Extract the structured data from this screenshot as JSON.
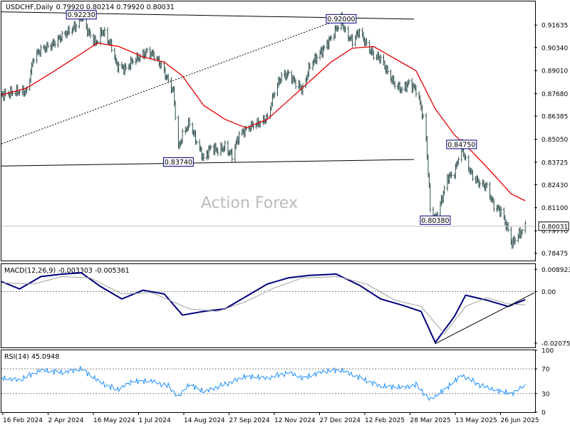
{
  "header": {
    "symbol": "USDCHF,Daily",
    "ohlc": "0.79920 0.80214 0.79920 0.80031"
  },
  "watermark": "Action Forex",
  "colors": {
    "background": "#ffffff",
    "bars": "#2f4f4f",
    "moving_average": "#e60000",
    "macd": "#000080",
    "signal": "#a0a0a0",
    "rsi": "#1e90ff",
    "trendline": "#000000",
    "current_price_line": "#c0c0c0"
  },
  "chart_data": [
    {
      "type": "ohlc",
      "title": "USDCHF,Daily",
      "current_price": 0.80031,
      "current_price_label": "0.80031",
      "ylim": [
        0.7805,
        0.93
      ],
      "y_ticks": [
        {
          "value": 0.91635,
          "label": "0.91635"
        },
        {
          "value": 0.9034,
          "label": "0.90340"
        },
        {
          "value": 0.8901,
          "label": "0.89010"
        },
        {
          "value": 0.8768,
          "label": "0.87680"
        },
        {
          "value": 0.86385,
          "label": "0.86385"
        },
        {
          "value": 0.8505,
          "label": "0.85050"
        },
        {
          "value": 0.83725,
          "label": "0.83725"
        },
        {
          "value": 0.8243,
          "label": "0.82430"
        },
        {
          "value": 0.811,
          "label": "0.81100"
        },
        {
          "value": 0.7977,
          "label": "0.79770"
        },
        {
          "value": 0.78475,
          "label": "0.78475"
        }
      ],
      "x_tick_labels": [
        "16 Feb 2024",
        "2 Apr 2024",
        "16 May 2024",
        "1 Jul 2024",
        "14 Aug 2024",
        "27 Sep 2024",
        "12 Nov 2024",
        "27 Dec 2024",
        "12 Feb 2025",
        "28 Mar 2025",
        "13 May 2025",
        "26 Jun 2025"
      ],
      "close_path": [
        {
          "date": "2024-02-12",
          "value": 0.876
        },
        {
          "date": "2024-02-26",
          "value": 0.878
        },
        {
          "date": "2024-03-08",
          "value": 0.878
        },
        {
          "date": "2024-03-15",
          "value": 0.898
        },
        {
          "date": "2024-03-22",
          "value": 0.902
        },
        {
          "date": "2024-04-02",
          "value": 0.905
        },
        {
          "date": "2024-04-12",
          "value": 0.91
        },
        {
          "date": "2024-04-19",
          "value": 0.913
        },
        {
          "date": "2024-04-26",
          "value": 0.916
        },
        {
          "date": "2024-05-01",
          "value": 0.922
        },
        {
          "date": "2024-05-08",
          "value": 0.912
        },
        {
          "date": "2024-05-15",
          "value": 0.906
        },
        {
          "date": "2024-05-22",
          "value": 0.913
        },
        {
          "date": "2024-05-31",
          "value": 0.904
        },
        {
          "date": "2024-06-05",
          "value": 0.893
        },
        {
          "date": "2024-06-14",
          "value": 0.891
        },
        {
          "date": "2024-06-21",
          "value": 0.896
        },
        {
          "date": "2024-06-28",
          "value": 0.898
        },
        {
          "date": "2024-07-05",
          "value": 0.901
        },
        {
          "date": "2024-07-12",
          "value": 0.899
        },
        {
          "date": "2024-07-19",
          "value": 0.893
        },
        {
          "date": "2024-07-26",
          "value": 0.884
        },
        {
          "date": "2024-07-31",
          "value": 0.878
        },
        {
          "date": "2024-08-05",
          "value": 0.845
        },
        {
          "date": "2024-08-09",
          "value": 0.853
        },
        {
          "date": "2024-08-16",
          "value": 0.86
        },
        {
          "date": "2024-08-23",
          "value": 0.849
        },
        {
          "date": "2024-08-30",
          "value": 0.839
        },
        {
          "date": "2024-09-06",
          "value": 0.846
        },
        {
          "date": "2024-09-13",
          "value": 0.844
        },
        {
          "date": "2024-09-20",
          "value": 0.846
        },
        {
          "date": "2024-09-27",
          "value": 0.841
        },
        {
          "date": "2024-10-04",
          "value": 0.853
        },
        {
          "date": "2024-10-11",
          "value": 0.856
        },
        {
          "date": "2024-10-18",
          "value": 0.859
        },
        {
          "date": "2024-10-25",
          "value": 0.86
        },
        {
          "date": "2024-11-01",
          "value": 0.863
        },
        {
          "date": "2024-11-08",
          "value": 0.878
        },
        {
          "date": "2024-11-15",
          "value": 0.887
        },
        {
          "date": "2024-11-22",
          "value": 0.888
        },
        {
          "date": "2024-11-29",
          "value": 0.883
        },
        {
          "date": "2024-12-06",
          "value": 0.879
        },
        {
          "date": "2024-12-13",
          "value": 0.893
        },
        {
          "date": "2024-12-20",
          "value": 0.898
        },
        {
          "date": "2024-12-27",
          "value": 0.903
        },
        {
          "date": "2025-01-03",
          "value": 0.909
        },
        {
          "date": "2025-01-10",
          "value": 0.916
        },
        {
          "date": "2025-01-13",
          "value": 0.92
        },
        {
          "date": "2025-01-17",
          "value": 0.912
        },
        {
          "date": "2025-01-24",
          "value": 0.907
        },
        {
          "date": "2025-01-31",
          "value": 0.913
        },
        {
          "date": "2025-02-07",
          "value": 0.905
        },
        {
          "date": "2025-02-14",
          "value": 0.899
        },
        {
          "date": "2025-02-21",
          "value": 0.897
        },
        {
          "date": "2025-02-28",
          "value": 0.889
        },
        {
          "date": "2025-03-07",
          "value": 0.882
        },
        {
          "date": "2025-03-14",
          "value": 0.879
        },
        {
          "date": "2025-03-21",
          "value": 0.883
        },
        {
          "date": "2025-03-28",
          "value": 0.879
        },
        {
          "date": "2025-04-02",
          "value": 0.869
        },
        {
          "date": "2025-04-07",
          "value": 0.851
        },
        {
          "date": "2025-04-11",
          "value": 0.811
        },
        {
          "date": "2025-04-16",
          "value": 0.804
        },
        {
          "date": "2025-04-22",
          "value": 0.815
        },
        {
          "date": "2025-04-28",
          "value": 0.828
        },
        {
          "date": "2025-05-05",
          "value": 0.831
        },
        {
          "date": "2025-05-12",
          "value": 0.847
        },
        {
          "date": "2025-05-16",
          "value": 0.838
        },
        {
          "date": "2025-05-23",
          "value": 0.829
        },
        {
          "date": "2025-05-30",
          "value": 0.825
        },
        {
          "date": "2025-06-06",
          "value": 0.823
        },
        {
          "date": "2025-06-13",
          "value": 0.812
        },
        {
          "date": "2025-06-20",
          "value": 0.809
        },
        {
          "date": "2025-06-27",
          "value": 0.798
        },
        {
          "date": "2025-07-01",
          "value": 0.79
        },
        {
          "date": "2025-07-04",
          "value": 0.793
        },
        {
          "date": "2025-07-10",
          "value": 0.797
        },
        {
          "date": "2025-07-14",
          "value": 0.8
        }
      ],
      "moving_average": [
        {
          "date": "2024-02-12",
          "value": 0.876
        },
        {
          "date": "2024-03-08",
          "value": 0.88
        },
        {
          "date": "2024-04-02",
          "value": 0.889
        },
        {
          "date": "2024-04-26",
          "value": 0.898
        },
        {
          "date": "2024-05-17",
          "value": 0.906
        },
        {
          "date": "2024-06-07",
          "value": 0.904
        },
        {
          "date": "2024-07-01",
          "value": 0.898
        },
        {
          "date": "2024-07-22",
          "value": 0.895
        },
        {
          "date": "2024-08-09",
          "value": 0.887
        },
        {
          "date": "2024-08-30",
          "value": 0.87
        },
        {
          "date": "2024-09-20",
          "value": 0.862
        },
        {
          "date": "2024-10-11",
          "value": 0.857
        },
        {
          "date": "2024-11-01",
          "value": 0.862
        },
        {
          "date": "2024-11-22",
          "value": 0.873
        },
        {
          "date": "2024-12-13",
          "value": 0.884
        },
        {
          "date": "2025-01-03",
          "value": 0.895
        },
        {
          "date": "2025-01-24",
          "value": 0.903
        },
        {
          "date": "2025-02-14",
          "value": 0.904
        },
        {
          "date": "2025-03-07",
          "value": 0.897
        },
        {
          "date": "2025-03-28",
          "value": 0.89
        },
        {
          "date": "2025-04-16",
          "value": 0.868
        },
        {
          "date": "2025-05-05",
          "value": 0.853
        },
        {
          "date": "2025-05-23",
          "value": 0.843
        },
        {
          "date": "2025-06-13",
          "value": 0.83
        },
        {
          "date": "2025-06-30",
          "value": 0.819
        },
        {
          "date": "2025-07-14",
          "value": 0.815
        }
      ],
      "price_labels": [
        {
          "label": "0.92230",
          "date": "2024-05-01",
          "value": 0.9223
        },
        {
          "label": "0.92000",
          "date": "2025-01-13",
          "value": 0.92
        },
        {
          "label": "0.83740",
          "date": "2024-08-05",
          "value": 0.8374
        },
        {
          "label": "0.84750",
          "date": "2025-05-12",
          "value": 0.8475
        },
        {
          "label": "0.80380",
          "date": "2025-04-16",
          "value": 0.8038
        }
      ],
      "trendlines": [
        {
          "kind": "solid",
          "from": {
            "date": "2024-02-12",
            "value": 0.924
          },
          "to": {
            "date": "2025-03-26",
            "value": 0.9198
          }
        },
        {
          "kind": "solid",
          "from": {
            "date": "2024-02-12",
            "value": 0.835
          },
          "to": {
            "date": "2025-03-26",
            "value": 0.8388
          }
        },
        {
          "kind": "dotted",
          "from": {
            "date": "2024-02-12",
            "value": 0.8478
          },
          "to": {
            "date": "2025-01-13",
            "value": 0.92
          }
        }
      ]
    },
    {
      "type": "line",
      "title": "MACD(12,26,9) -0.003303 -0.005361",
      "ylim": [
        -0.0225,
        0.011
      ],
      "y_ticks": [
        {
          "value": 0.008923,
          "label": "0.008923"
        },
        {
          "value": 0.0,
          "label": "0.00"
        },
        {
          "value": -0.020759,
          "label": "-0.020759"
        }
      ],
      "zero_line_label": "0.00",
      "series": [
        {
          "role": "macd",
          "points": [
            {
              "date": "2024-02-12",
              "value": 0.004
            },
            {
              "date": "2024-03-01",
              "value": 0.001
            },
            {
              "date": "2024-03-22",
              "value": 0.006
            },
            {
              "date": "2024-04-12",
              "value": 0.007
            },
            {
              "date": "2024-05-01",
              "value": 0.0075
            },
            {
              "date": "2024-05-20",
              "value": 0.002
            },
            {
              "date": "2024-06-10",
              "value": -0.003
            },
            {
              "date": "2024-07-01",
              "value": 0.0005
            },
            {
              "date": "2024-07-22",
              "value": -0.001
            },
            {
              "date": "2024-08-09",
              "value": -0.0095
            },
            {
              "date": "2024-08-30",
              "value": -0.008
            },
            {
              "date": "2024-09-20",
              "value": -0.007
            },
            {
              "date": "2024-10-11",
              "value": -0.002
            },
            {
              "date": "2024-11-01",
              "value": 0.003
            },
            {
              "date": "2024-11-22",
              "value": 0.0055
            },
            {
              "date": "2024-12-13",
              "value": 0.0065
            },
            {
              "date": "2025-01-08",
              "value": 0.007
            },
            {
              "date": "2025-01-31",
              "value": 0.0025
            },
            {
              "date": "2025-02-21",
              "value": -0.003
            },
            {
              "date": "2025-03-14",
              "value": -0.0055
            },
            {
              "date": "2025-04-02",
              "value": -0.008
            },
            {
              "date": "2025-04-16",
              "value": -0.0205
            },
            {
              "date": "2025-05-05",
              "value": -0.01
            },
            {
              "date": "2025-05-16",
              "value": -0.0015
            },
            {
              "date": "2025-06-06",
              "value": -0.0035
            },
            {
              "date": "2025-06-27",
              "value": -0.006
            },
            {
              "date": "2025-07-14",
              "value": -0.0033
            }
          ]
        },
        {
          "role": "signal",
          "points": [
            {
              "date": "2024-02-12",
              "value": 0.0035
            },
            {
              "date": "2024-03-15",
              "value": 0.003
            },
            {
              "date": "2024-04-12",
              "value": 0.006
            },
            {
              "date": "2024-05-10",
              "value": 0.0055
            },
            {
              "date": "2024-06-10",
              "value": -0.001
            },
            {
              "date": "2024-07-10",
              "value": -0.0005
            },
            {
              "date": "2024-08-16",
              "value": -0.007
            },
            {
              "date": "2024-09-13",
              "value": -0.008
            },
            {
              "date": "2024-10-11",
              "value": -0.004
            },
            {
              "date": "2024-11-08",
              "value": 0.0015
            },
            {
              "date": "2024-12-06",
              "value": 0.0055
            },
            {
              "date": "2025-01-10",
              "value": 0.006
            },
            {
              "date": "2025-02-07",
              "value": 0.003
            },
            {
              "date": "2025-03-07",
              "value": -0.0035
            },
            {
              "date": "2025-04-02",
              "value": -0.006
            },
            {
              "date": "2025-04-25",
              "value": -0.017
            },
            {
              "date": "2025-05-16",
              "value": -0.006
            },
            {
              "date": "2025-06-06",
              "value": -0.0025
            },
            {
              "date": "2025-06-27",
              "value": -0.005
            },
            {
              "date": "2025-07-14",
              "value": -0.0054
            }
          ]
        }
      ],
      "trendlines": [
        {
          "kind": "solid",
          "from": {
            "date": "2025-04-16",
            "value": -0.021
          },
          "to": {
            "date": "2025-07-23",
            "value": -0.0005
          }
        }
      ]
    },
    {
      "type": "line",
      "title": "RSI(14) 45.0948",
      "ylim": [
        0,
        100
      ],
      "y_ticks": [
        {
          "value": 100,
          "label": "100"
        },
        {
          "value": 70,
          "label": "70"
        },
        {
          "value": 30,
          "label": "30"
        },
        {
          "value": 0,
          "label": "0"
        }
      ],
      "levels": [
        70,
        30
      ],
      "series": [
        {
          "role": "rsi",
          "points": [
            {
              "date": "2024-02-12",
              "value": 55
            },
            {
              "date": "2024-03-01",
              "value": 52
            },
            {
              "date": "2024-03-22",
              "value": 68
            },
            {
              "date": "2024-04-12",
              "value": 64
            },
            {
              "date": "2024-05-01",
              "value": 70
            },
            {
              "date": "2024-05-20",
              "value": 48
            },
            {
              "date": "2024-06-05",
              "value": 36
            },
            {
              "date": "2024-06-21",
              "value": 50
            },
            {
              "date": "2024-07-10",
              "value": 50
            },
            {
              "date": "2024-07-26",
              "value": 42
            },
            {
              "date": "2024-08-05",
              "value": 25
            },
            {
              "date": "2024-08-16",
              "value": 45
            },
            {
              "date": "2024-08-30",
              "value": 33
            },
            {
              "date": "2024-09-20",
              "value": 45
            },
            {
              "date": "2024-10-11",
              "value": 58
            },
            {
              "date": "2024-11-01",
              "value": 55
            },
            {
              "date": "2024-11-22",
              "value": 64
            },
            {
              "date": "2024-12-06",
              "value": 55
            },
            {
              "date": "2024-12-27",
              "value": 66
            },
            {
              "date": "2025-01-13",
              "value": 68
            },
            {
              "date": "2025-01-31",
              "value": 56
            },
            {
              "date": "2025-02-21",
              "value": 42
            },
            {
              "date": "2025-03-14",
              "value": 40
            },
            {
              "date": "2025-03-28",
              "value": 44
            },
            {
              "date": "2025-04-11",
              "value": 20
            },
            {
              "date": "2025-04-28",
              "value": 40
            },
            {
              "date": "2025-05-12",
              "value": 60
            },
            {
              "date": "2025-05-30",
              "value": 44
            },
            {
              "date": "2025-06-13",
              "value": 36
            },
            {
              "date": "2025-07-01",
              "value": 30
            },
            {
              "date": "2025-07-14",
              "value": 45
            }
          ]
        }
      ]
    }
  ]
}
